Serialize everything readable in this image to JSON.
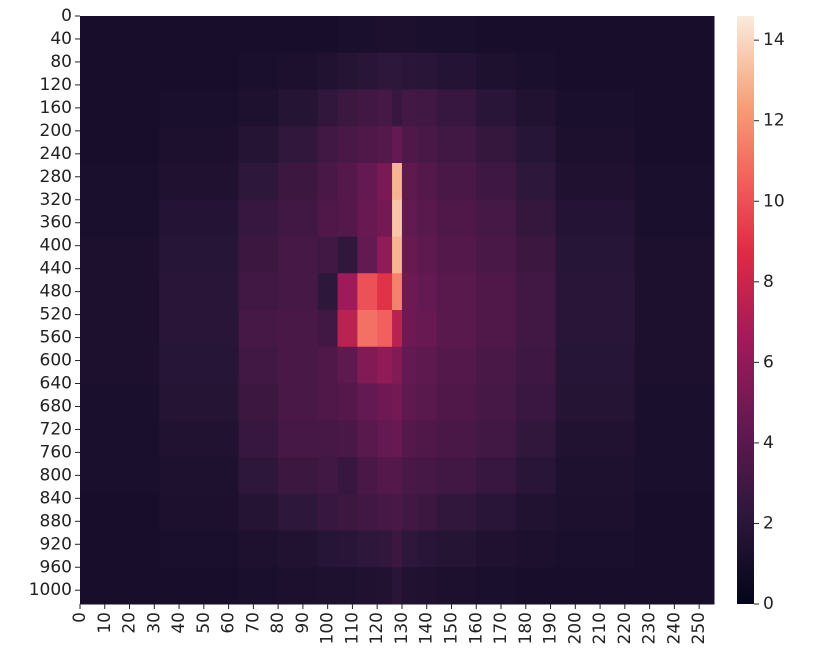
{
  "chart_data": {
    "type": "heatmap",
    "colormap": "rocket",
    "xbins": [
      0,
      32,
      64,
      80,
      96,
      104,
      112,
      120,
      126,
      130,
      136,
      144,
      160,
      176,
      192,
      224,
      256
    ],
    "ybins": [
      0,
      64,
      128,
      192,
      256,
      320,
      384,
      448,
      512,
      576,
      640,
      704,
      768,
      832,
      896,
      960,
      1024
    ],
    "values": [
      [
        1.1,
        1.1,
        1.1,
        1.1,
        1.1,
        1.2,
        1.2,
        1.3,
        1.3,
        1.3,
        1.2,
        1.2,
        1.1,
        1.1,
        1.1,
        1.1
      ],
      [
        1.1,
        1.1,
        1.2,
        1.3,
        1.6,
        1.8,
        2.0,
        2.2,
        2.2,
        2.1,
        2.0,
        1.7,
        1.4,
        1.2,
        1.1,
        1.1
      ],
      [
        1.1,
        1.2,
        1.4,
        1.8,
        2.4,
        2.8,
        3.0,
        3.2,
        2.6,
        3.1,
        3.0,
        2.6,
        2.0,
        1.6,
        1.2,
        1.1
      ],
      [
        1.1,
        1.3,
        1.8,
        2.4,
        3.0,
        3.4,
        3.6,
        3.8,
        4.5,
        3.6,
        3.4,
        3.0,
        2.5,
        1.9,
        1.3,
        1.1
      ],
      [
        1.2,
        1.5,
        2.2,
        2.8,
        3.4,
        3.8,
        4.5,
        5.2,
        13.0,
        4.2,
        3.8,
        3.4,
        2.9,
        2.2,
        1.5,
        1.2
      ],
      [
        1.2,
        1.7,
        2.6,
        3.0,
        3.6,
        3.8,
        4.6,
        5.0,
        13.5,
        4.4,
        4.0,
        3.6,
        3.2,
        2.5,
        1.7,
        1.2
      ],
      [
        1.3,
        1.9,
        2.8,
        3.2,
        3.0,
        2.4,
        4.4,
        6.0,
        13.0,
        4.6,
        4.2,
        3.8,
        3.4,
        2.8,
        1.9,
        1.3
      ],
      [
        1.3,
        2.0,
        3.0,
        3.2,
        2.2,
        6.5,
        10.0,
        9.0,
        11.5,
        4.8,
        4.4,
        4.0,
        3.6,
        3.0,
        2.0,
        1.3
      ],
      [
        1.3,
        2.0,
        3.2,
        3.4,
        3.0,
        7.5,
        11.0,
        10.5,
        7.5,
        4.8,
        4.6,
        4.0,
        3.6,
        3.0,
        2.0,
        1.3
      ],
      [
        1.3,
        1.9,
        3.0,
        3.4,
        3.6,
        4.2,
        5.5,
        6.0,
        5.5,
        4.4,
        4.2,
        3.8,
        3.4,
        2.9,
        1.9,
        1.3
      ],
      [
        1.2,
        1.8,
        2.8,
        3.4,
        3.6,
        3.8,
        4.4,
        4.8,
        5.0,
        4.2,
        4.0,
        3.6,
        3.2,
        2.7,
        1.8,
        1.2
      ],
      [
        1.2,
        1.6,
        2.6,
        3.2,
        3.2,
        3.4,
        4.0,
        4.4,
        4.6,
        3.8,
        3.6,
        3.4,
        3.0,
        2.4,
        1.6,
        1.2
      ],
      [
        1.2,
        1.4,
        2.2,
        2.8,
        3.0,
        2.6,
        3.4,
        3.8,
        3.8,
        3.4,
        3.2,
        3.0,
        2.6,
        2.0,
        1.4,
        1.2
      ],
      [
        1.1,
        1.3,
        1.8,
        2.2,
        2.6,
        2.8,
        3.0,
        3.2,
        3.4,
        3.0,
        2.8,
        2.4,
        2.0,
        1.6,
        1.3,
        1.1
      ],
      [
        1.1,
        1.2,
        1.4,
        1.6,
        1.9,
        2.0,
        2.2,
        2.4,
        2.8,
        2.2,
        2.0,
        1.8,
        1.5,
        1.3,
        1.2,
        1.1
      ],
      [
        1.1,
        1.1,
        1.2,
        1.3,
        1.4,
        1.4,
        1.5,
        1.6,
        2.0,
        1.6,
        1.5,
        1.3,
        1.2,
        1.1,
        1.1,
        1.1
      ]
    ],
    "xlim": [
      0,
      256
    ],
    "ylim": [
      0,
      1024
    ],
    "xticks": [
      0,
      10,
      20,
      30,
      40,
      50,
      60,
      70,
      80,
      90,
      100,
      110,
      120,
      130,
      140,
      150,
      160,
      170,
      180,
      190,
      200,
      210,
      220,
      230,
      240,
      250
    ],
    "yticks": [
      0,
      40,
      80,
      120,
      160,
      200,
      240,
      280,
      320,
      360,
      400,
      440,
      480,
      520,
      560,
      600,
      640,
      680,
      720,
      760,
      800,
      840,
      880,
      920,
      960,
      1000
    ],
    "clim": [
      0,
      14.6
    ],
    "cticks": [
      0,
      2,
      4,
      6,
      8,
      10,
      12,
      14
    ]
  }
}
